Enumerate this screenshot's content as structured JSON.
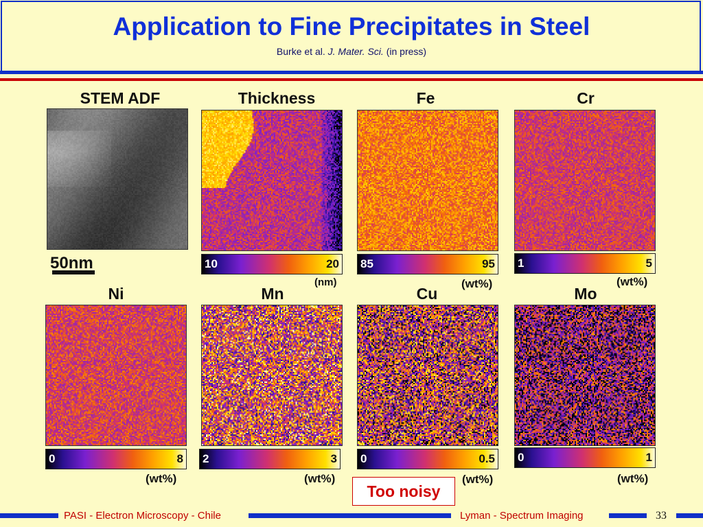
{
  "title": "Application to Fine Precipitates in Steel",
  "citation": {
    "authors": "Burke et al.",
    "journal": "J. Mater. Sci.",
    "status": "(in press)"
  },
  "panels": [
    {
      "label": "STEM ADF",
      "colormap": "gray"
    },
    {
      "label": "Thickness",
      "colormap": "hot",
      "min": "10",
      "max": "20",
      "unit": "(nm)"
    },
    {
      "label": "Fe",
      "colormap": "hot",
      "min": "85",
      "max": "95",
      "unit": "(wt%)"
    },
    {
      "label": "Cr",
      "colormap": "hot",
      "min": "1",
      "max": "5",
      "unit": "(wt%)"
    },
    {
      "label": "Ni",
      "colormap": "hot",
      "min": "0",
      "max": "8",
      "unit": "(wt%)"
    },
    {
      "label": "Mn",
      "colormap": "hot",
      "min": "2",
      "max": "3",
      "unit": "(wt%)"
    },
    {
      "label": "Cu",
      "colormap": "hot",
      "min": "0",
      "max": "0.5",
      "unit": "(wt%)"
    },
    {
      "label": "Mo",
      "colormap": "hot",
      "min": "0",
      "max": "1",
      "unit": "(wt%)"
    }
  ],
  "scale_bar": "50nm",
  "callout": "Too noisy",
  "footer": {
    "left": "PASI - Electron Microscopy - Chile",
    "right": "Lyman - Spectrum Imaging",
    "page": "33"
  },
  "colors": {
    "title": "#1030d8",
    "accent_blue": "#1030c8",
    "accent_red": "#d00000",
    "background": "#fdfbc6"
  }
}
